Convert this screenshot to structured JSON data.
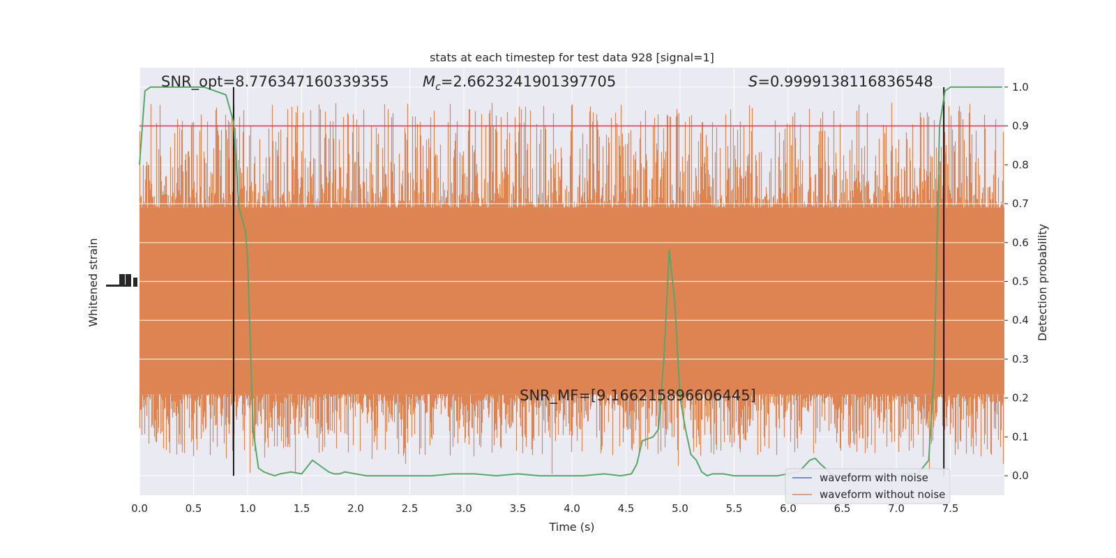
{
  "chart_data": {
    "type": "line",
    "title": "stats at each timestep for test data 928 [signal=1]",
    "xlabel": "Time (s)",
    "ylabel_left": "Whitened strain",
    "ylabel_right": "Detection probability",
    "xlim": [
      0,
      8
    ],
    "ylim_right": [
      -0.05,
      1.05
    ],
    "x_ticks": [
      "0.0",
      "0.5",
      "1.0",
      "1.5",
      "2.0",
      "2.5",
      "3.0",
      "3.5",
      "4.0",
      "4.5",
      "5.0",
      "5.5",
      "6.0",
      "6.5",
      "7.0",
      "7.5"
    ],
    "y_ticks_right": [
      "0.0",
      "0.1",
      "0.2",
      "0.3",
      "0.4",
      "0.5",
      "0.6",
      "0.7",
      "0.8",
      "0.9",
      "1.0"
    ],
    "grid": true,
    "annotations": {
      "snr_opt": "SNR_opt=8.776347160339355",
      "mc_symbol": "M",
      "mc_sub": "c",
      "mc_value": "=2.6623241901397705",
      "s_symbol": "S",
      "s_value": "=0.9999138116836548",
      "snr_mf": "SNR_MF=[9.166215896606445]"
    },
    "threshold": 0.9,
    "vlines": [
      0.87,
      7.44
    ],
    "legend": {
      "position": "lower-right",
      "entries": [
        "waveform with noise",
        "waveform without noise"
      ]
    },
    "series": [
      {
        "name": "waveform with noise",
        "color": "#4c72b0",
        "axis": "left"
      },
      {
        "name": "waveform without noise",
        "color": "#dd8452",
        "axis": "right_scaled",
        "band_center": 0.45,
        "band_core_half": 0.24,
        "spike_max": 0.96,
        "spike_min": 0.0
      },
      {
        "name": "Detection probability",
        "color": "#55a868",
        "axis": "right",
        "x": [
          0.0,
          0.05,
          0.1,
          0.2,
          0.3,
          0.4,
          0.5,
          0.6,
          0.7,
          0.8,
          0.82,
          0.87,
          0.92,
          0.95,
          0.98,
          1.0,
          1.05,
          1.1,
          1.15,
          1.2,
          1.25,
          1.3,
          1.4,
          1.5,
          1.6,
          1.7,
          1.75,
          1.8,
          1.85,
          1.9,
          2.0,
          2.1,
          2.3,
          2.5,
          2.7,
          2.9,
          3.1,
          3.3,
          3.5,
          3.7,
          3.9,
          4.1,
          4.3,
          4.45,
          4.55,
          4.6,
          4.65,
          4.75,
          4.8,
          4.85,
          4.9,
          4.95,
          5.0,
          5.05,
          5.1,
          5.15,
          5.2,
          5.25,
          5.3,
          5.4,
          5.5,
          5.6,
          5.7,
          5.8,
          5.9,
          6.0,
          6.1,
          6.2,
          6.25,
          6.3,
          6.4,
          6.5,
          6.6,
          6.7,
          6.8,
          6.9,
          7.0,
          7.1,
          7.2,
          7.3,
          7.35,
          7.4,
          7.45,
          7.5,
          7.6,
          7.7,
          7.8,
          7.9,
          7.98
        ],
        "y": [
          0.8,
          0.99,
          1.0,
          1.0,
          1.0,
          1.0,
          1.0,
          1.0,
          0.99,
          0.98,
          0.96,
          0.91,
          0.69,
          0.66,
          0.63,
          0.56,
          0.12,
          0.02,
          0.01,
          0.005,
          0.0,
          0.005,
          0.01,
          0.005,
          0.04,
          0.02,
          0.01,
          0.005,
          0.005,
          0.01,
          0.005,
          0.0,
          0.0,
          0.0,
          0.0,
          0.005,
          0.005,
          0.0,
          0.005,
          0.0,
          0.0,
          0.0,
          0.005,
          0.0,
          0.005,
          0.03,
          0.09,
          0.1,
          0.12,
          0.3,
          0.58,
          0.45,
          0.2,
          0.12,
          0.055,
          0.04,
          0.01,
          0.0,
          0.005,
          0.005,
          0.0,
          0.0,
          0.0,
          0.0,
          0.0,
          0.005,
          0.01,
          0.04,
          0.045,
          0.03,
          0.005,
          0.0,
          0.0,
          0.0,
          0.0,
          0.0,
          0.0,
          0.005,
          0.005,
          0.04,
          0.27,
          0.9,
          0.99,
          1.0,
          1.0,
          1.0,
          1.0,
          1.0,
          1.0
        ]
      }
    ]
  }
}
